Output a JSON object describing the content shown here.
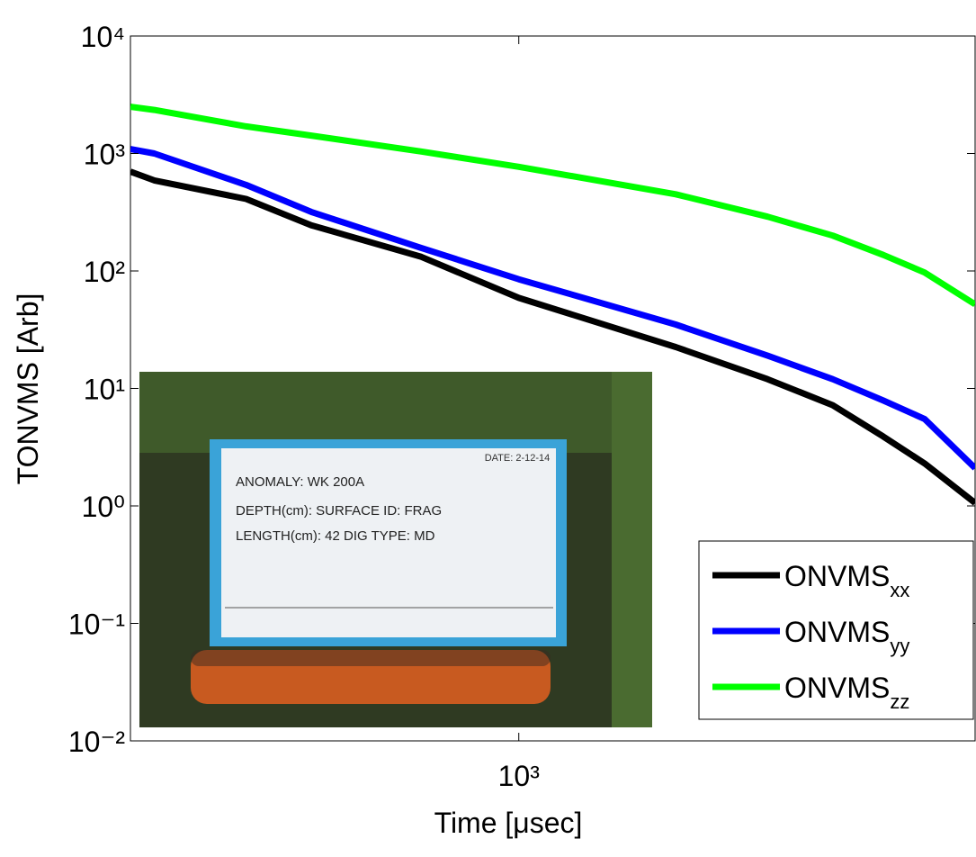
{
  "chart_data": {
    "type": "line",
    "xlabel": "Time [μsec]",
    "ylabel": "TONVMS [Arb]",
    "xscale": "log",
    "yscale": "log",
    "xlim": [
      180,
      7500
    ],
    "ylim": [
      0.01,
      10000
    ],
    "xticks": [
      {
        "value": 1000,
        "label": "10³"
      }
    ],
    "yticks": [
      {
        "value": 0.01,
        "label": "10⁻²"
      },
      {
        "value": 0.1,
        "label": "10⁻¹"
      },
      {
        "value": 1,
        "label": "10⁰"
      },
      {
        "value": 10,
        "label": "10¹"
      },
      {
        "value": 100,
        "label": "10²"
      },
      {
        "value": 1000,
        "label": "10³"
      },
      {
        "value": 10000,
        "label": "10⁴"
      }
    ],
    "x": [
      180,
      200,
      300,
      400,
      650,
      1000,
      2000,
      3000,
      4000,
      5000,
      6000,
      7500
    ],
    "series": [
      {
        "name": "ONVMS",
        "name_subscript": "xx",
        "color": "#000000",
        "values": [
          700,
          590,
          410,
          245,
          132,
          59,
          22.5,
          12,
          7.2,
          3.9,
          2.3,
          1.06
        ]
      },
      {
        "name": "ONVMS",
        "name_subscript": "yy",
        "color": "#0000ff",
        "values": [
          1090,
          1000,
          540,
          318,
          157,
          85,
          35,
          19,
          12,
          7.9,
          5.5,
          2.1
        ]
      },
      {
        "name": "ONVMS",
        "name_subscript": "zz",
        "color": "#00ff00",
        "values": [
          2500,
          2350,
          1700,
          1420,
          1040,
          770,
          450,
          290,
          200,
          137,
          97,
          52
        ]
      }
    ],
    "legend": "lower right",
    "inset_photo": {
      "date": "DATE: 2-12-14",
      "lines": [
        "ANOMALY: WK 200A",
        "DEPTH(cm): SURFACE  ID: FRAG",
        "LENGTH(cm): 42     DIG TYPE: MD"
      ]
    }
  }
}
